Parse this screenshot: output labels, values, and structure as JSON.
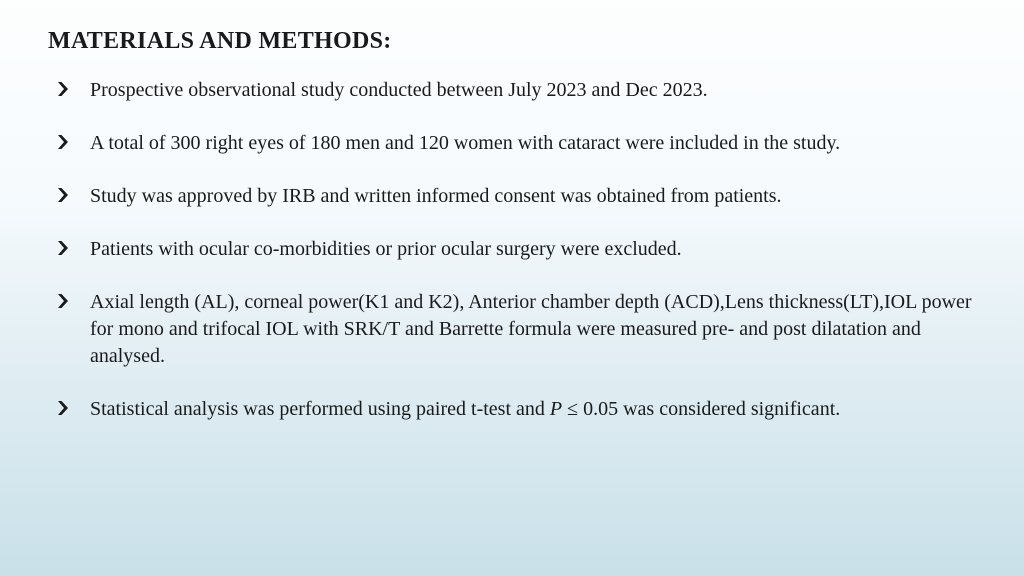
{
  "heading": "MATERIALS AND METHODS:",
  "bullets": [
    "Prospective observational study conducted between  July 2023 and Dec 2023.",
    "A total of 300 right eyes of 180 men and 120 women with cataract were included in the study.",
    "Study was approved by IRB and written informed consent was obtained from patients.",
    "Patients with ocular co-morbidities or prior ocular surgery were excluded.",
    "Axial length (AL), corneal power(K1 and K2), Anterior chamber depth (ACD),Lens thickness(LT),IOL power for mono and trifocal IOL with SRK/T and Barrette formula were measured  pre- and post dilatation and analysed."
  ],
  "bullet6_pre": "Statistical analysis was performed using paired t-test and ",
  "bullet6_it": "P",
  "bullet6_mid": " ≤ 0.05 was considered significant."
}
